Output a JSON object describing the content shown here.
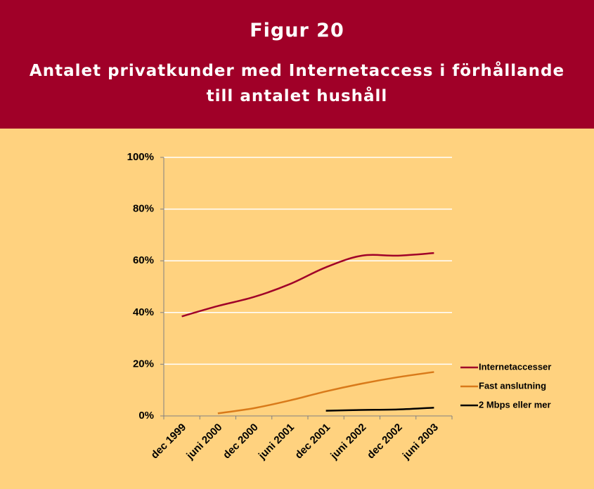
{
  "header": {
    "title": "Figur 20",
    "subtitle": [
      "Antalet privatkunder med Internetaccess i förhållande",
      "till antalet hushåll"
    ]
  },
  "chart_data": {
    "type": "line",
    "categories": [
      "dec 1999",
      "juni 2000",
      "dec 2000",
      "juni 2001",
      "dec 2001",
      "juni 2002",
      "dec 2002",
      "juni 2003"
    ],
    "series": [
      {
        "name": "Internetaccesser",
        "color": "#a00028",
        "values": [
          38.5,
          42.5,
          46,
          51,
          57.5,
          62,
          62,
          63
        ]
      },
      {
        "name": "Fast anslutning",
        "color": "#d97a1a",
        "values": [
          null,
          1,
          3,
          6,
          9.5,
          12.5,
          15,
          17
        ]
      },
      {
        "name": "2 Mbps eller mer",
        "color": "#000000",
        "values": [
          null,
          null,
          null,
          null,
          2,
          2.3,
          2.5,
          3.2
        ]
      }
    ],
    "ylim": [
      0,
      100
    ],
    "yticks": [
      {
        "value": 0,
        "label": "0%"
      },
      {
        "value": 20,
        "label": "20%"
      },
      {
        "value": 40,
        "label": "40%"
      },
      {
        "value": 60,
        "label": "60%"
      },
      {
        "value": 80,
        "label": "80%"
      },
      {
        "value": 100,
        "label": "100%"
      }
    ],
    "grid": true,
    "legend": "right"
  }
}
